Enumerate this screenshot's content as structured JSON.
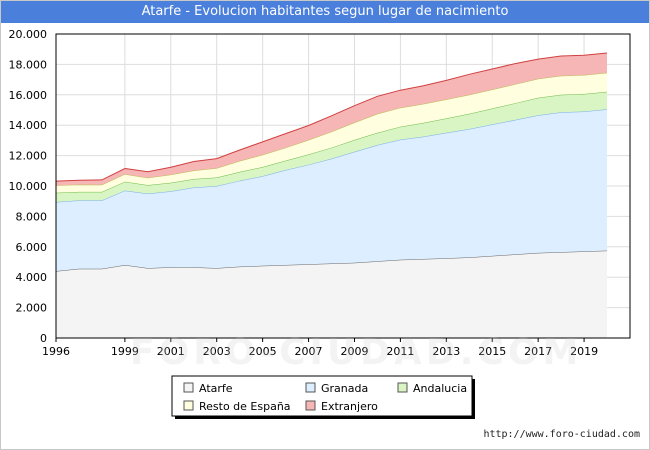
{
  "page": {
    "title": "Atarfe - Evolucion habitantes segun lugar de nacimiento",
    "source": "http://www.foro-ciudad.com",
    "watermark": "FORO-CIUDAD.COM"
  },
  "chart_data": {
    "type": "area",
    "stacked": true,
    "title": "Atarfe - Evolucion habitantes segun lugar de nacimiento",
    "xlabel": "",
    "ylabel": "",
    "x": [
      1996,
      1997,
      1998,
      1999,
      2000,
      2001,
      2002,
      2003,
      2004,
      2005,
      2006,
      2007,
      2008,
      2009,
      2010,
      2011,
      2012,
      2013,
      2014,
      2015,
      2016,
      2017,
      2018,
      2019,
      2020
    ],
    "xlim": [
      1996,
      2021
    ],
    "ylim": [
      0,
      20000
    ],
    "x_ticks": [
      1996,
      1999,
      2001,
      2003,
      2005,
      2007,
      2009,
      2011,
      2013,
      2015,
      2017,
      2019
    ],
    "y_ticks": [
      0,
      2000,
      4000,
      6000,
      8000,
      10000,
      12000,
      14000,
      16000,
      18000,
      20000
    ],
    "y_tick_labels": [
      "0",
      "2.000",
      "4.000",
      "6.000",
      "8.000",
      "10.000",
      "12.000",
      "14.000",
      "16.000",
      "18.000",
      "20.000"
    ],
    "grid": true,
    "legend_position": "bottom",
    "series": [
      {
        "name": "Atarfe",
        "color": "#f4f4f4",
        "edge": "#666666",
        "values": [
          4400,
          4550,
          4550,
          4800,
          4600,
          4650,
          4650,
          4600,
          4700,
          4750,
          4800,
          4850,
          4900,
          4950,
          5050,
          5150,
          5200,
          5250,
          5300,
          5400,
          5500,
          5600,
          5650,
          5700,
          5750
        ]
      },
      {
        "name": "Granada",
        "color": "#dceeff",
        "edge": "#7aaee6",
        "values": [
          4550,
          4500,
          4500,
          4900,
          4900,
          5000,
          5250,
          5400,
          5650,
          5900,
          6250,
          6550,
          6900,
          7300,
          7650,
          7900,
          8050,
          8250,
          8450,
          8650,
          8850,
          9050,
          9200,
          9200,
          9300
        ]
      },
      {
        "name": "Andalucia",
        "color": "#d9f5c4",
        "edge": "#6dbb4a",
        "values": [
          600,
          560,
          560,
          580,
          560,
          560,
          560,
          560,
          580,
          600,
          620,
          680,
          720,
          780,
          800,
          850,
          900,
          950,
          1000,
          1050,
          1100,
          1150,
          1150,
          1150,
          1150
        ]
      },
      {
        "name": "Resto de España",
        "color": "#ffffe0",
        "edge": "#bbbb55",
        "values": [
          500,
          480,
          470,
          500,
          480,
          540,
          560,
          620,
          720,
          800,
          850,
          950,
          1050,
          1150,
          1250,
          1250,
          1250,
          1250,
          1250,
          1250,
          1250,
          1250,
          1250,
          1250,
          1250
        ]
      },
      {
        "name": "Extranjero",
        "color": "#f7b6b6",
        "edge": "#d04040",
        "values": [
          270,
          290,
          320,
          370,
          400,
          490,
          590,
          620,
          720,
          850,
          930,
          950,
          1050,
          1100,
          1150,
          1150,
          1200,
          1250,
          1350,
          1350,
          1350,
          1300,
          1300,
          1300,
          1300
        ]
      }
    ]
  }
}
